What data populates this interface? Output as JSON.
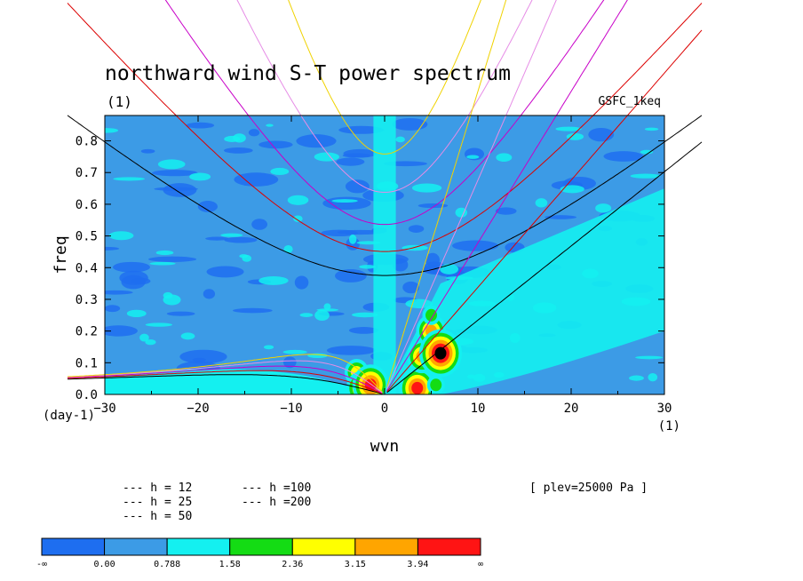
{
  "chart_data": {
    "type": "heatmap",
    "title": "northward wind S-T power spectrum",
    "subtitle": "(1)",
    "source_label": "GSFC_1keq",
    "condition_label": "[ plev=25000 Pa ]",
    "xlabel": "wvn",
    "xunit": "(1)",
    "ylabel": "freq",
    "yunit": "(day-1)",
    "xlim": [
      -30,
      30
    ],
    "ylim": [
      0,
      0.88
    ],
    "xticks": [
      -30,
      -20,
      -10,
      0,
      10,
      20,
      30
    ],
    "yticks": [
      0.0,
      0.1,
      0.2,
      0.3,
      0.4,
      0.5,
      0.6,
      0.7,
      0.8
    ],
    "color_levels": {
      "labels": [
        "-∞",
        "0.00",
        "0.788",
        "1.58",
        "2.36",
        "3.15",
        "3.94",
        "∞"
      ],
      "colors": [
        "#1e6ef0",
        "#3c9be6",
        "#14f0f0",
        "#14dc14",
        "#ffff00",
        "#ffa500",
        "#ff1414"
      ]
    },
    "background_level_color": "#3c9be6",
    "dispersion_curves": {
      "legend_position": "bottom-left",
      "series": [
        {
          "name": "h = 12",
          "h": 12,
          "color": "#000000"
        },
        {
          "name": "h = 25",
          "h": 25,
          "color": "#dc0000"
        },
        {
          "name": "h = 50",
          "h": 50,
          "color": "#c800c8"
        },
        {
          "name": "h =100",
          "h": 100,
          "color": "#e68ce6"
        },
        {
          "name": "h =200",
          "h": 200,
          "color": "#f0d200"
        }
      ]
    },
    "power_hotspots": [
      {
        "x": -3.0,
        "y": 0.07,
        "level": 4
      },
      {
        "x": -2.5,
        "y": 0.02,
        "level": 5
      },
      {
        "x": -1.5,
        "y": 0.03,
        "level": 6
      },
      {
        "x": 3.5,
        "y": 0.02,
        "level": 6
      },
      {
        "x": 4.0,
        "y": 0.12,
        "level": 5
      },
      {
        "x": 5.0,
        "y": 0.2,
        "level": 5
      },
      {
        "x": 6.0,
        "y": 0.13,
        "level": 7
      },
      {
        "x": 5.0,
        "y": 0.25,
        "level": 3
      },
      {
        "x": 5.5,
        "y": 0.03,
        "level": 3
      }
    ]
  }
}
